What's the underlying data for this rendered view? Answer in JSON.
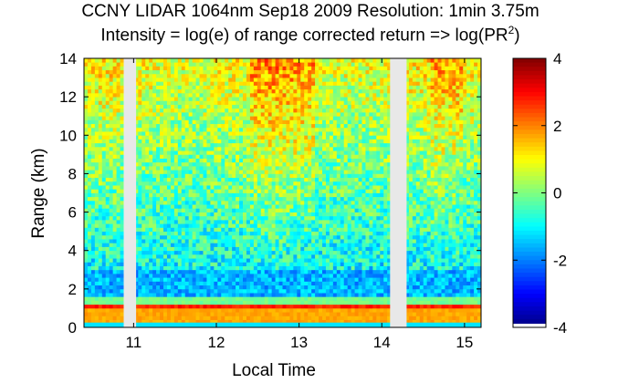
{
  "chart_data": {
    "type": "heatmap",
    "title": "CCNY LIDAR 1064nm Sep18 2009 Resolution: 1min 3.75m",
    "subtitle_prefix": "Intensity = log(e) of range corrected return => log(PR",
    "subtitle_sup": "2",
    "subtitle_suffix": ")",
    "xlabel": "Local Time",
    "ylabel": "Range (km)",
    "xlim": [
      10.4,
      15.2
    ],
    "ylim": [
      0,
      14
    ],
    "xticks": [
      11,
      12,
      13,
      14,
      15
    ],
    "yticks": [
      0,
      2,
      4,
      6,
      8,
      10,
      12,
      14
    ],
    "colorbar": {
      "range": [
        -4,
        4
      ],
      "ticks": [
        4,
        2,
        0,
        -2,
        -4
      ],
      "colormap": "jet"
    },
    "data_gaps_local_time": [
      [
        10.88,
        11.03
      ],
      [
        14.1,
        14.3
      ]
    ],
    "boundary_layer_top_km": 0.9,
    "surface_layer_value": 1.5,
    "upper_noise_value": 1.0,
    "mid_troposphere_value": -1.0
  }
}
